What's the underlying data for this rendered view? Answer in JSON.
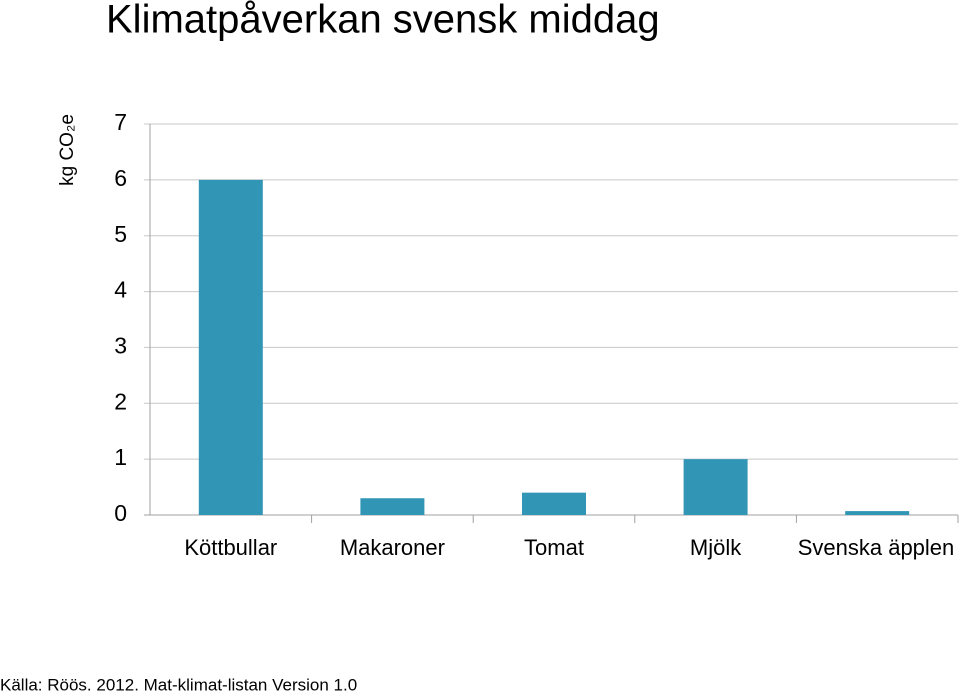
{
  "chart_data": {
    "type": "bar",
    "title": "Klimatpåverkan svensk middag",
    "y_label": "kg CO₂e",
    "source": "Källa: Röös. 2012. Mat-klimat-listan Version 1.0",
    "categories": [
      "Köttbullar",
      "Makaroner",
      "Tomat",
      "Mjölk",
      "Svenska äpplen"
    ],
    "values": [
      6.0,
      0.3,
      0.4,
      1.0,
      0.07
    ],
    "color": "#3196b6",
    "ylim": [
      0,
      7
    ],
    "yticks": [
      0,
      1,
      2,
      3,
      4,
      5,
      6,
      7
    ],
    "grid": true
  }
}
